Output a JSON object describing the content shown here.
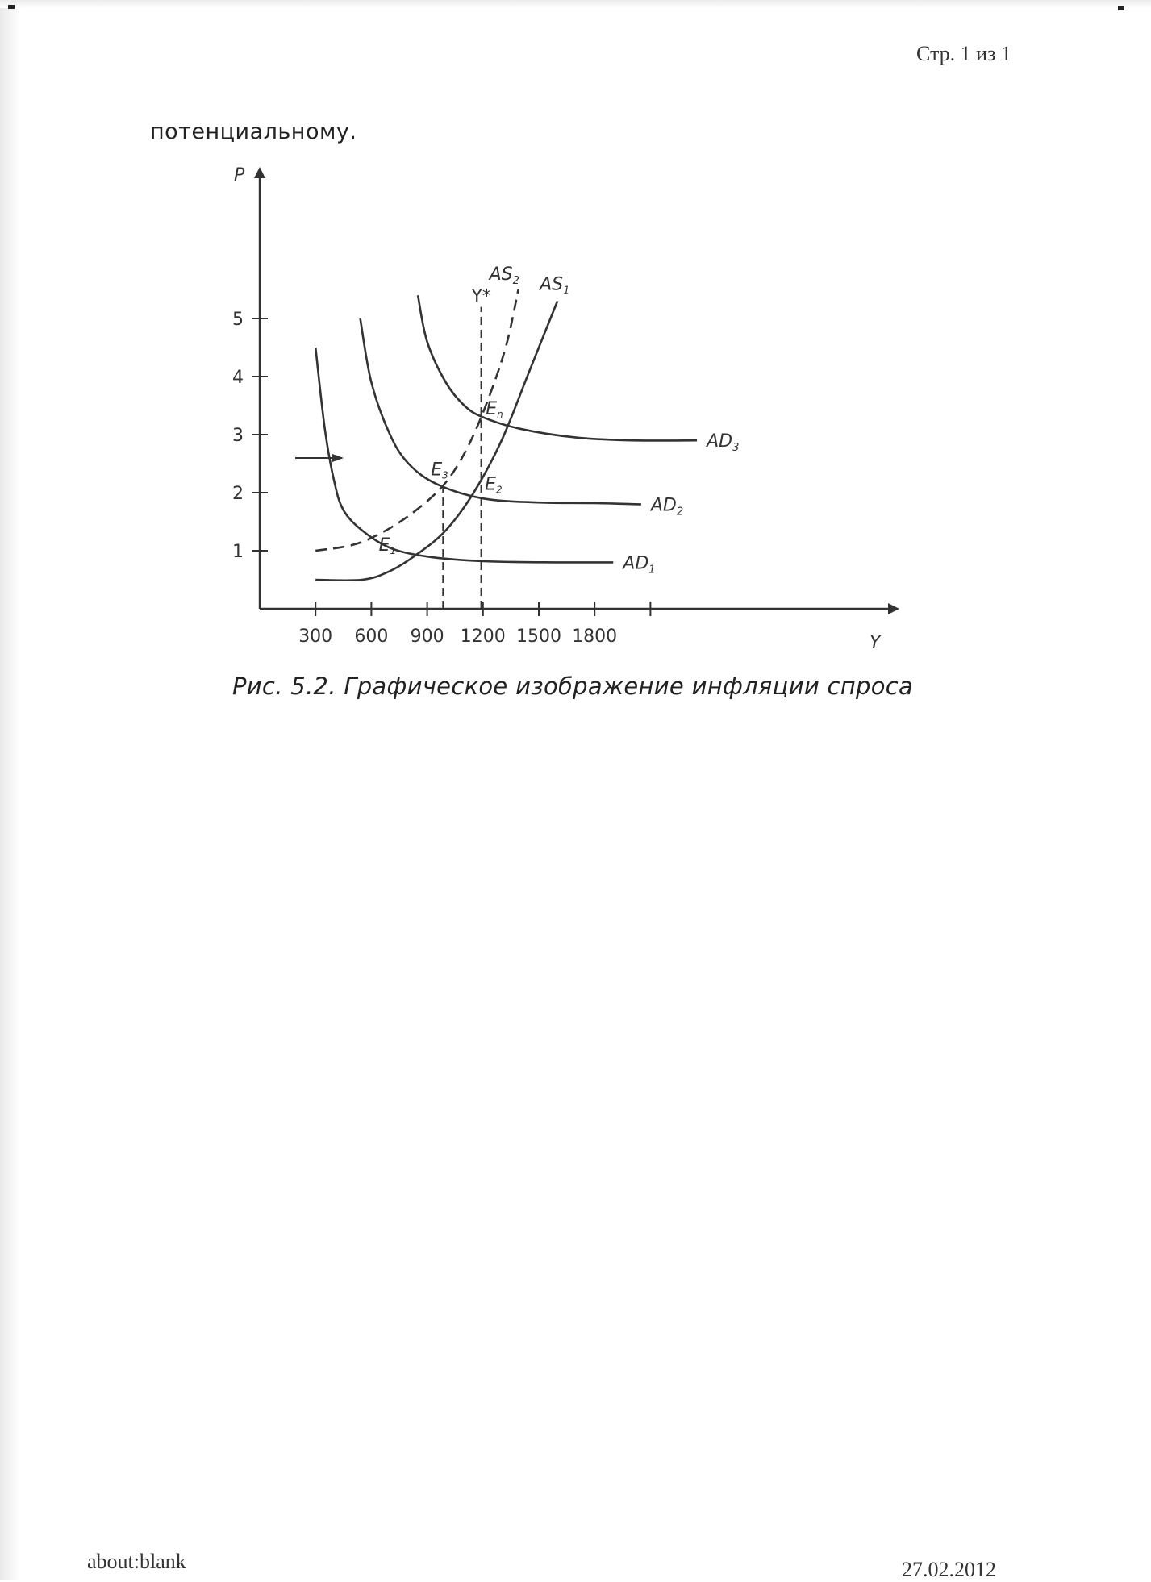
{
  "header": {
    "page_counter": "Стр. 1 из 1"
  },
  "body": {
    "intro_text": "потенциальному."
  },
  "figure": {
    "caption": "Рис. 5.2. Графическое изображение инфляции спроса"
  },
  "footer": {
    "url": "about:blank",
    "date": "27.02.2012"
  },
  "chart_data": {
    "type": "line",
    "title": "",
    "xlabel": "Y",
    "ylabel": "P",
    "xlim": [
      0,
      2000
    ],
    "ylim": [
      0,
      5.5
    ],
    "x_ticks": [
      300,
      600,
      900,
      1200,
      1500,
      1800
    ],
    "x_tick_labels": [
      "300",
      "600",
      "900",
      "1200",
      "1500",
      "1800"
    ],
    "y_ticks": [
      1,
      2,
      3,
      4,
      5
    ],
    "y_tick_labels": [
      "1",
      "2",
      "3",
      "4",
      "5"
    ],
    "grid": false,
    "series": [
      {
        "name": "AD",
        "sub": "1",
        "style": "solid",
        "points": [
          [
            300,
            4.5
          ],
          [
            350,
            3.1
          ],
          [
            400,
            2.2
          ],
          [
            450,
            1.7
          ],
          [
            550,
            1.35
          ],
          [
            700,
            1.05
          ],
          [
            900,
            0.9
          ],
          [
            1200,
            0.82
          ],
          [
            1600,
            0.8
          ],
          [
            1900,
            0.8
          ]
        ]
      },
      {
        "name": "AD",
        "sub": "2",
        "style": "solid",
        "points": [
          [
            540,
            5.0
          ],
          [
            600,
            3.9
          ],
          [
            700,
            3.0
          ],
          [
            800,
            2.5
          ],
          [
            950,
            2.15
          ],
          [
            1200,
            1.9
          ],
          [
            1500,
            1.83
          ],
          [
            1800,
            1.82
          ],
          [
            2050,
            1.8
          ]
        ]
      },
      {
        "name": "AD",
        "sub": "3",
        "style": "solid",
        "points": [
          [
            850,
            5.4
          ],
          [
            900,
            4.6
          ],
          [
            1000,
            3.9
          ],
          [
            1100,
            3.5
          ],
          [
            1200,
            3.3
          ],
          [
            1400,
            3.1
          ],
          [
            1700,
            2.95
          ],
          [
            2000,
            2.9
          ],
          [
            2350,
            2.9
          ]
        ]
      },
      {
        "name": "AS",
        "sub": "1",
        "style": "solid",
        "points": [
          [
            300,
            0.5
          ],
          [
            550,
            0.5
          ],
          [
            700,
            0.65
          ],
          [
            850,
            0.95
          ],
          [
            1000,
            1.35
          ],
          [
            1150,
            2.0
          ],
          [
            1300,
            2.9
          ],
          [
            1450,
            4.1
          ],
          [
            1600,
            5.3
          ]
        ]
      },
      {
        "name": "AS",
        "sub": "2",
        "style": "dashed",
        "points": [
          [
            300,
            1.0
          ],
          [
            500,
            1.1
          ],
          [
            650,
            1.3
          ],
          [
            800,
            1.6
          ],
          [
            950,
            2.0
          ],
          [
            1050,
            2.4
          ],
          [
            1150,
            3.0
          ],
          [
            1250,
            3.8
          ],
          [
            1330,
            4.6
          ],
          [
            1390,
            5.5
          ]
        ]
      }
    ],
    "reference_lines": [
      {
        "label": "Y*",
        "x": 1190,
        "from": 0,
        "to": 5.2
      },
      {
        "label": "",
        "x": 985,
        "from": 0,
        "to": 2.2
      }
    ],
    "points": [
      {
        "name": "E",
        "sub": "1"
      },
      {
        "name": "E",
        "sub": "2"
      },
      {
        "name": "E",
        "sub": "3"
      },
      {
        "name": "E",
        "sub": "n"
      }
    ],
    "annotations": [
      "→"
    ]
  }
}
